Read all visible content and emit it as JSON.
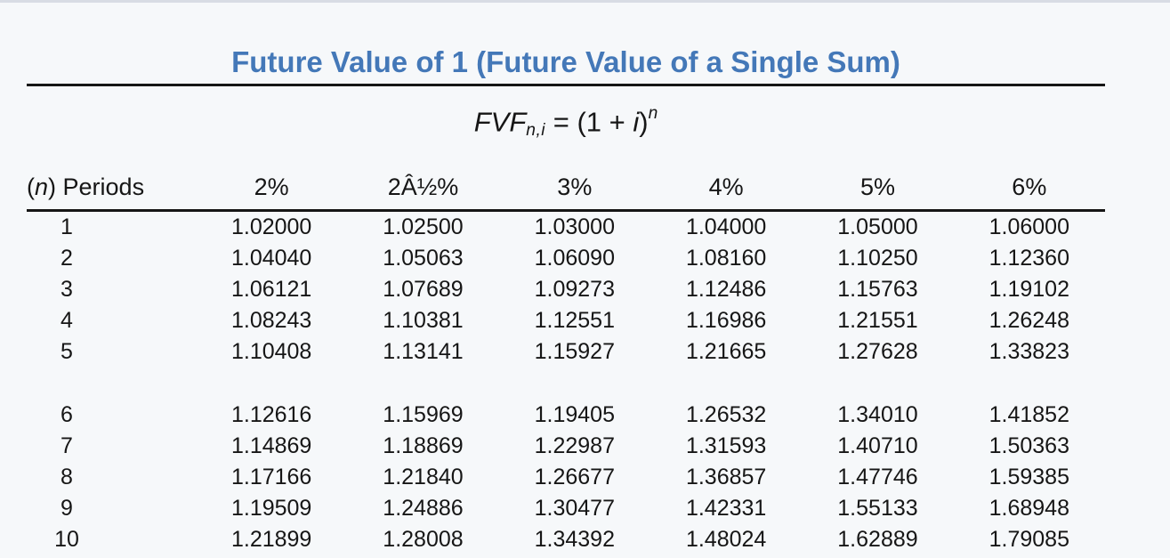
{
  "accent": {
    "title_color": "#4478b8",
    "rule_color": "#161616",
    "background": "#f6f8fa"
  },
  "header": {
    "title": "Future Value of 1 (Future Value of a Single Sum)"
  },
  "formula": {
    "lhs": "FVF",
    "lhs_sub": "n,i",
    "eq": " = ",
    "open": "(1 + ",
    "var": "i",
    "close": ")",
    "exp": "n"
  },
  "table": {
    "periods_header": {
      "open": "(",
      "n": "n",
      "rest": ") Periods"
    },
    "rate_columns": [
      "2%",
      "2Â½%",
      "3%",
      "4%",
      "5%",
      "6%"
    ],
    "rows": [
      {
        "n": "1",
        "values": [
          "1.02000",
          "1.02500",
          "1.03000",
          "1.04000",
          "1.05000",
          "1.06000"
        ]
      },
      {
        "n": "2",
        "values": [
          "1.04040",
          "1.05063",
          "1.06090",
          "1.08160",
          "1.10250",
          "1.12360"
        ]
      },
      {
        "n": "3",
        "values": [
          "1.06121",
          "1.07689",
          "1.09273",
          "1.12486",
          "1.15763",
          "1.19102"
        ]
      },
      {
        "n": "4",
        "values": [
          "1.08243",
          "1.10381",
          "1.12551",
          "1.16986",
          "1.21551",
          "1.26248"
        ]
      },
      {
        "n": "5",
        "values": [
          "1.10408",
          "1.13141",
          "1.15927",
          "1.21665",
          "1.27628",
          "1.33823"
        ]
      },
      {
        "n": "6",
        "values": [
          "1.12616",
          "1.15969",
          "1.19405",
          "1.26532",
          "1.34010",
          "1.41852"
        ]
      },
      {
        "n": "7",
        "values": [
          "1.14869",
          "1.18869",
          "1.22987",
          "1.31593",
          "1.40710",
          "1.50363"
        ]
      },
      {
        "n": "8",
        "values": [
          "1.17166",
          "1.21840",
          "1.26677",
          "1.36857",
          "1.47746",
          "1.59385"
        ]
      },
      {
        "n": "9",
        "values": [
          "1.19509",
          "1.24886",
          "1.30477",
          "1.42331",
          "1.55133",
          "1.68948"
        ]
      },
      {
        "n": "10",
        "values": [
          "1.21899",
          "1.28008",
          "1.34392",
          "1.48024",
          "1.62889",
          "1.79085"
        ]
      }
    ]
  }
}
